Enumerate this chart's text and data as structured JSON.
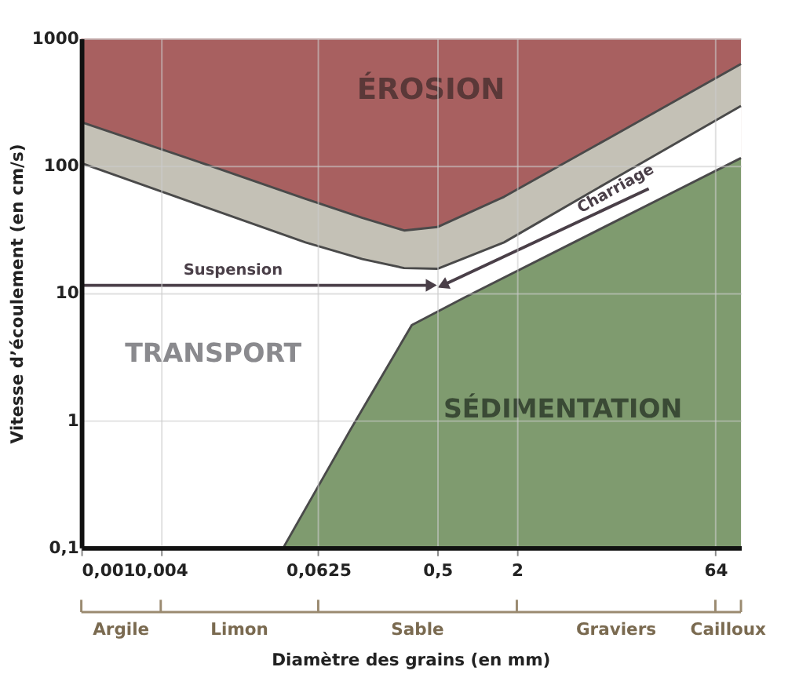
{
  "chart_data": {
    "type": "area",
    "xlabel": "Diamètre des grains (en mm)",
    "ylabel": "Vitesse d’écoulement (en cm/s)",
    "log": "xy",
    "grid": true,
    "xlim": [
      0.001,
      100
    ],
    "ylim": [
      0.1,
      1000
    ],
    "xticks": [
      {
        "value": 0.001,
        "label": "0,001"
      },
      {
        "value": 0.004,
        "label": "0,004"
      },
      {
        "value": 0.0625,
        "label": "0,0625"
      },
      {
        "value": 0.5,
        "label": "0,5"
      },
      2,
      64
    ],
    "yticks": [
      {
        "value": 0.1,
        "label": "0,1"
      },
      1,
      10,
      100,
      1000
    ],
    "series": [
      {
        "color": "#a86060",
        "x": [
          0.001,
          100
        ],
        "values": [
          1000,
          1000
        ]
      },
      {
        "color": "#c4c1b6",
        "x": [
          0.001,
          0.01,
          0.05,
          0.135,
          0.28,
          0.5,
          1.6,
          10,
          100
        ],
        "values": [
          220,
          98,
          55,
          39,
          31,
          33,
          57,
          165,
          630
        ]
      },
      {
        "color": "#ffffff",
        "x": [
          0.001,
          0.01,
          0.05,
          0.135,
          0.28,
          0.5,
          1.6,
          10,
          100
        ],
        "values": [
          105,
          45,
          25,
          18.5,
          15.7,
          15.5,
          25,
          75,
          295
        ]
      },
      {
        "color": "#7f9b6f",
        "x": [
          0.034,
          0.11,
          0.32,
          0.8,
          100
        ],
        "values": [
          0.1,
          0.85,
          5.6,
          9.2,
          115
        ]
      },
      {
        "type": "line",
        "color": "#4a3f48",
        "x": [
          0.001,
          0.45
        ],
        "values": [
          11.5,
          11.5
        ]
      },
      {
        "type": "line",
        "color": "#4a3f48",
        "x": [
          20,
          0.55
        ],
        "values": [
          66,
          11.5
        ]
      }
    ],
    "annotations": [
      "ÉROSION",
      "TRANSPORT",
      "SÉDIMENTATION",
      "Suspension",
      "Charriage",
      "Argile",
      "Limon",
      "Sable",
      "Graviers",
      "Cailloux"
    ]
  }
}
